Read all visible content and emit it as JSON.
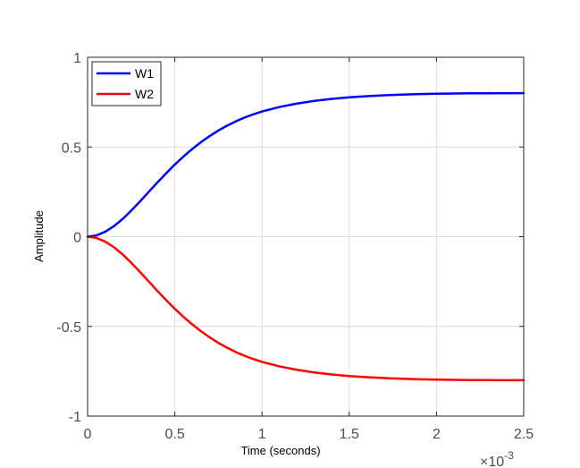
{
  "chart_data": {
    "type": "line",
    "xlabel": "Time (seconds)",
    "ylabel": "Amplitude",
    "x_multiplier": {
      "base": "×10",
      "exponent": "-3"
    },
    "xlim": [
      0,
      2.5
    ],
    "ylim": [
      -1,
      1
    ],
    "x_ticks": [
      0,
      0.5,
      1,
      1.5,
      2,
      2.5
    ],
    "x_tick_labels": [
      "0",
      "0.5",
      "1",
      "1.5",
      "2",
      "2.5"
    ],
    "y_ticks": [
      -1,
      -0.5,
      0,
      0.5,
      1
    ],
    "y_tick_labels": [
      "-1",
      "-0.5",
      "0",
      "0.5",
      "1"
    ],
    "grid": true,
    "legend_position": "top-left",
    "x": [
      0,
      0.05,
      0.1,
      0.15,
      0.2,
      0.25,
      0.3,
      0.35,
      0.4,
      0.45,
      0.5,
      0.55,
      0.6,
      0.65,
      0.7,
      0.75,
      0.8,
      0.85,
      0.9,
      0.95,
      1.0,
      1.1,
      1.2,
      1.3,
      1.4,
      1.5,
      1.6,
      1.7,
      1.8,
      1.9,
      2.0,
      2.1,
      2.2,
      2.3,
      2.4,
      2.5
    ],
    "series": [
      {
        "name": "W1",
        "color": "#0000ff",
        "values": [
          0,
          0.007,
          0.027,
          0.058,
          0.098,
          0.145,
          0.196,
          0.249,
          0.302,
          0.353,
          0.402,
          0.447,
          0.489,
          0.527,
          0.561,
          0.592,
          0.619,
          0.643,
          0.664,
          0.682,
          0.698,
          0.723,
          0.742,
          0.757,
          0.768,
          0.777,
          0.783,
          0.788,
          0.792,
          0.795,
          0.797,
          0.798,
          0.799,
          0.7995,
          0.7998,
          0.8
        ]
      },
      {
        "name": "W2",
        "color": "#ff0000",
        "values": [
          0,
          -0.007,
          -0.027,
          -0.058,
          -0.098,
          -0.145,
          -0.196,
          -0.249,
          -0.302,
          -0.353,
          -0.402,
          -0.447,
          -0.489,
          -0.527,
          -0.561,
          -0.592,
          -0.619,
          -0.643,
          -0.664,
          -0.682,
          -0.698,
          -0.723,
          -0.742,
          -0.757,
          -0.768,
          -0.777,
          -0.783,
          -0.788,
          -0.792,
          -0.795,
          -0.797,
          -0.798,
          -0.799,
          -0.7995,
          -0.7998,
          -0.8
        ]
      }
    ]
  }
}
